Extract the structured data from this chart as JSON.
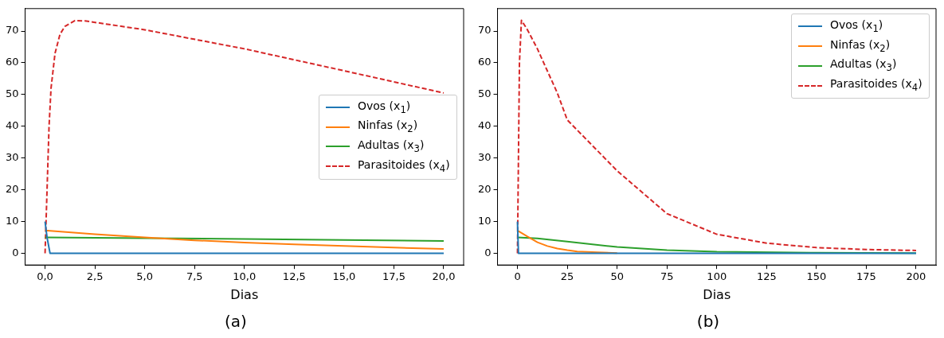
{
  "chart_data": [
    {
      "type": "line",
      "xlabel": "Dias",
      "annotations": [
        "(a)"
      ],
      "xlim": [
        -1,
        21
      ],
      "ylim": [
        -3.67,
        77.07
      ],
      "xticks": [
        {
          "value": 0,
          "label": "0,0"
        },
        {
          "value": 2.5,
          "label": "2,5"
        },
        {
          "value": 5,
          "label": "5,0"
        },
        {
          "value": 7.5,
          "label": "7,5"
        },
        {
          "value": 10,
          "label": "10,0"
        },
        {
          "value": 12.5,
          "label": "12,5"
        },
        {
          "value": 15,
          "label": "15,0"
        },
        {
          "value": 17.5,
          "label": "17,5"
        },
        {
          "value": 20,
          "label": "20,0"
        }
      ],
      "yticks": [
        0,
        10,
        20,
        30,
        40,
        50,
        60,
        70
      ],
      "grid": false,
      "legend": "right",
      "marker": "none",
      "series": [
        {
          "name": "Ovos (x$_{1}$)",
          "color": "#1f77b4",
          "line_style": "solid",
          "x": [
            0,
            0.1,
            0.25,
            5,
            10,
            15,
            20
          ],
          "values": [
            10,
            5,
            0,
            0,
            0,
            0,
            0
          ]
        },
        {
          "name": "Ninfas (x$_{2}$)",
          "color": "#ff7f0e",
          "line_style": "solid",
          "x": [
            0,
            2.5,
            5,
            7.5,
            10,
            12.5,
            15,
            17.5,
            20
          ],
          "values": [
            7.2,
            6,
            5,
            4.1,
            3.4,
            2.8,
            2.3,
            1.8,
            1.4
          ]
        },
        {
          "name": "Adultas (x$_{3}$)",
          "color": "#2ca02c",
          "line_style": "solid",
          "x": [
            0,
            5,
            10,
            15,
            20
          ],
          "values": [
            5,
            4.8,
            4.5,
            4.2,
            3.9
          ]
        },
        {
          "name": "Parasitoides (x$_{4}$)",
          "color": "#d62728",
          "line_style": "dashed",
          "x": [
            0,
            0.1,
            0.2,
            0.3,
            0.5,
            0.75,
            1,
            1.5,
            2,
            5,
            10,
            15,
            20
          ],
          "values": [
            0,
            20,
            40,
            52,
            63,
            69,
            71.5,
            73.3,
            73.2,
            70.4,
            64.4,
            57.5,
            50.5
          ]
        }
      ]
    },
    {
      "type": "line",
      "xlabel": "Dias",
      "annotations": [
        "(b)"
      ],
      "xlim": [
        -10,
        210
      ],
      "ylim": [
        -3.67,
        77.07
      ],
      "xticks": [
        0,
        25,
        50,
        75,
        100,
        125,
        150,
        175,
        200
      ],
      "yticks": [
        0,
        10,
        20,
        30,
        40,
        50,
        60,
        70
      ],
      "grid": false,
      "legend": "top right",
      "marker": "none",
      "series": [
        {
          "name": "Ovos (x$_{1}$)",
          "color": "#1f77b4",
          "line_style": "solid",
          "x": [
            0,
            0.5,
            50,
            100,
            150,
            200
          ],
          "values": [
            10,
            0,
            0,
            0,
            0,
            0
          ]
        },
        {
          "name": "Ninfas (x$_{2}$)",
          "color": "#ff7f0e",
          "line_style": "solid",
          "x": [
            0,
            5,
            10,
            15,
            20,
            25,
            30,
            40,
            50
          ],
          "values": [
            7.2,
            5.3,
            3.5,
            2.3,
            1.5,
            1,
            0.6,
            0.3,
            0.1
          ]
        },
        {
          "name": "Adultas (x$_{3}$)",
          "color": "#2ca02c",
          "line_style": "solid",
          "x": [
            0,
            10,
            25,
            50,
            75,
            100,
            150,
            200
          ],
          "values": [
            5,
            4.7,
            3.7,
            2,
            1,
            0.5,
            0.2,
            0.1
          ]
        },
        {
          "name": "Parasitoides (x$_{4}$)",
          "color": "#d62728",
          "line_style": "dashed",
          "x": [
            0,
            1,
            2,
            5,
            10,
            20,
            25,
            50,
            75,
            100,
            125,
            150,
            175,
            200
          ],
          "values": [
            0,
            60,
            73.4,
            70.4,
            64.4,
            50.5,
            42,
            26,
            12.5,
            6,
            3.2,
            1.8,
            1.2,
            0.9
          ]
        }
      ]
    }
  ]
}
